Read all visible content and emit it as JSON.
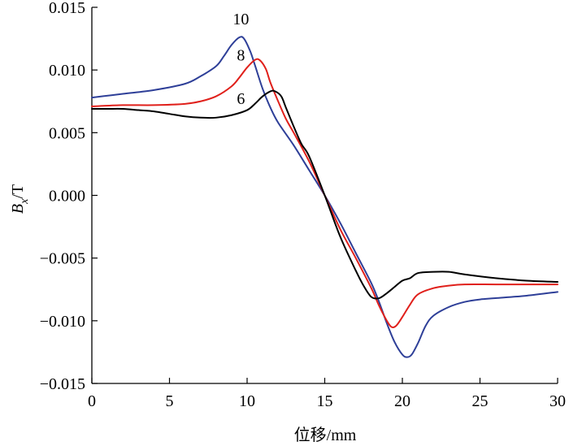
{
  "chart_data": {
    "type": "line",
    "xlabel": "位移/mm",
    "ylabel_main": "B",
    "ylabel_sub": "x",
    "ylabel_unit": "/T",
    "xlim": [
      0,
      30
    ],
    "ylim": [
      -0.015,
      0.015
    ],
    "xticks": [
      0,
      5,
      10,
      15,
      20,
      25,
      30
    ],
    "yticks": [
      -0.015,
      -0.01,
      -0.005,
      0.0,
      0.005,
      0.01,
      0.015
    ],
    "ytick_labels": [
      "−0.015",
      "−0.010",
      "−0.005",
      "0.000",
      "0.005",
      "0.010",
      "0.015"
    ],
    "grid": false,
    "series": [
      {
        "name": "10",
        "color": "#2e3f98",
        "x": [
          0,
          2,
          4,
          6,
          7,
          8,
          8.5,
          9,
          9.5,
          9.8,
          10.2,
          10.5,
          11,
          11.5,
          12,
          13,
          14,
          15,
          16,
          17,
          18,
          18.5,
          19,
          19.5,
          20,
          20.3,
          20.6,
          21,
          21.5,
          22,
          23,
          24,
          25,
          26,
          28,
          30
        ],
        "y": [
          0.0078,
          0.0081,
          0.0084,
          0.0089,
          0.0095,
          0.0103,
          0.0111,
          0.012,
          0.0126,
          0.0125,
          0.0115,
          0.0104,
          0.0085,
          0.007,
          0.0058,
          0.004,
          0.002,
          0.0,
          -0.0022,
          -0.0046,
          -0.007,
          -0.0085,
          -0.0102,
          -0.0117,
          -0.0127,
          -0.0129,
          -0.0127,
          -0.0118,
          -0.0104,
          -0.0096,
          -0.0089,
          -0.0085,
          -0.0083,
          -0.0082,
          -0.008,
          -0.0077
        ]
      },
      {
        "name": "8",
        "color": "#e0201b",
        "x": [
          0,
          2,
          4,
          6,
          7,
          8,
          9,
          9.5,
          10,
          10.5,
          10.8,
          11.2,
          11.5,
          12,
          12.5,
          13,
          14,
          15,
          16,
          17,
          18,
          18.5,
          19,
          19.3,
          19.6,
          20,
          20.5,
          21,
          22,
          23,
          24,
          26,
          28,
          30
        ],
        "y": [
          0.0071,
          0.0072,
          0.0072,
          0.0073,
          0.0075,
          0.0079,
          0.0087,
          0.0094,
          0.0102,
          0.0108,
          0.0108,
          0.0101,
          0.009,
          0.0075,
          0.0061,
          0.005,
          0.0027,
          0.0,
          -0.0027,
          -0.005,
          -0.0074,
          -0.0088,
          -0.01,
          -0.0105,
          -0.0104,
          -0.0097,
          -0.0087,
          -0.0079,
          -0.0074,
          -0.0072,
          -0.0071,
          -0.0071,
          -0.0071,
          -0.0071
        ]
      },
      {
        "name": "6",
        "color": "#000000",
        "x": [
          0,
          1,
          2,
          3,
          4,
          5,
          6,
          7,
          8,
          9,
          10,
          10.5,
          11,
          11.5,
          11.8,
          12.2,
          12.5,
          13,
          13.5,
          14,
          15,
          16,
          17,
          17.5,
          18,
          18.5,
          19,
          19.5,
          20,
          20.5,
          21,
          22,
          23,
          24,
          26,
          28,
          30
        ],
        "y": [
          0.0069,
          0.0069,
          0.0069,
          0.0068,
          0.0067,
          0.0065,
          0.0063,
          0.0062,
          0.0062,
          0.0064,
          0.0068,
          0.0073,
          0.0079,
          0.0083,
          0.0083,
          0.0079,
          0.007,
          0.0055,
          0.0041,
          0.0031,
          0.0,
          -0.0033,
          -0.006,
          -0.0072,
          -0.0081,
          -0.0082,
          -0.0078,
          -0.0073,
          -0.0068,
          -0.0066,
          -0.0062,
          -0.0061,
          -0.0061,
          -0.0063,
          -0.0066,
          -0.0068,
          -0.0069
        ]
      }
    ],
    "labels": [
      {
        "text": "10",
        "x": 9.6,
        "y": 0.01365
      },
      {
        "text": "8",
        "x": 9.6,
        "y": 0.01075
      },
      {
        "text": "6",
        "x": 9.6,
        "y": 0.0073
      }
    ]
  }
}
